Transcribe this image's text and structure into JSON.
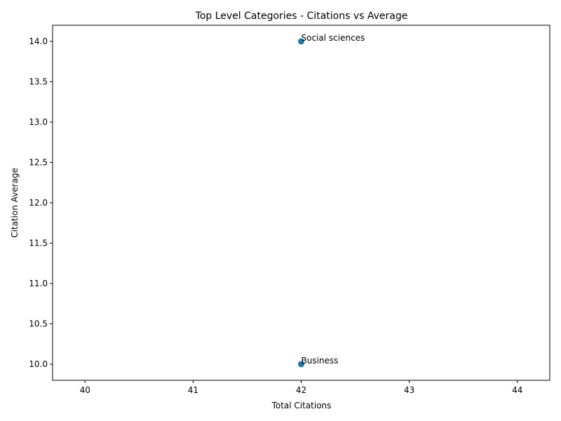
{
  "chart_data": {
    "type": "scatter",
    "title": "Top Level Categories - Citations vs Average",
    "xlabel": "Total Citations",
    "ylabel": "Citation Average",
    "xlim": [
      39.7,
      44.3
    ],
    "ylim": [
      9.8,
      14.2
    ],
    "xticks": [
      40,
      41,
      42,
      43,
      44
    ],
    "xtick_labels": [
      "40",
      "41",
      "42",
      "43",
      "44"
    ],
    "yticks": [
      10.0,
      10.5,
      11.0,
      11.5,
      12.0,
      12.5,
      13.0,
      13.5,
      14.0
    ],
    "ytick_labels": [
      "10.0",
      "10.5",
      "11.0",
      "11.5",
      "12.0",
      "12.5",
      "13.0",
      "13.5",
      "14.0"
    ],
    "grid": false,
    "marker_color": "#1f77b4",
    "points": [
      {
        "x": 42,
        "y": 14,
        "label": "Social sciences"
      },
      {
        "x": 42,
        "y": 10,
        "label": "Business"
      }
    ]
  }
}
